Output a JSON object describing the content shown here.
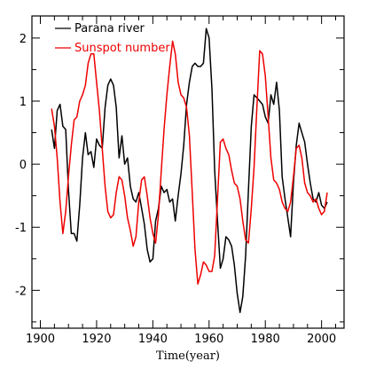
{
  "chart_data": {
    "type": "line",
    "title": "",
    "xlabel": "Time(year)",
    "ylabel": "",
    "xlim": [
      1897,
      2008
    ],
    "ylim": [
      -2.6,
      2.35
    ],
    "xticks": [
      1900,
      1920,
      1940,
      1960,
      1980,
      2000
    ],
    "yticks": [
      -2,
      -1,
      0,
      1,
      2
    ],
    "grid": false,
    "legend_position": "top-left",
    "series": [
      {
        "name": "Parana river",
        "color": "#000000",
        "x": [
          1904,
          1905,
          1906,
          1907,
          1908,
          1909,
          1910,
          1911,
          1912,
          1913,
          1914,
          1915,
          1916,
          1917,
          1918,
          1919,
          1920,
          1921,
          1922,
          1923,
          1924,
          1925,
          1926,
          1927,
          1928,
          1929,
          1930,
          1931,
          1932,
          1933,
          1934,
          1935,
          1936,
          1937,
          1938,
          1939,
          1940,
          1941,
          1942,
          1943,
          1944,
          1945,
          1946,
          1947,
          1948,
          1949,
          1950,
          1951,
          1952,
          1953,
          1954,
          1955,
          1956,
          1957,
          1958,
          1959,
          1960,
          1961,
          1962,
          1963,
          1964,
          1965,
          1966,
          1967,
          1968,
          1969,
          1970,
          1971,
          1972,
          1973,
          1974,
          1975,
          1976,
          1977,
          1978,
          1979,
          1980,
          1981,
          1982,
          1983,
          1984,
          1985,
          1986,
          1987,
          1988,
          1989,
          1990,
          1991,
          1992,
          1993,
          1994,
          1995,
          1996,
          1997,
          1998,
          1999,
          2000,
          2001,
          2002
        ],
        "y": [
          0.55,
          0.25,
          0.85,
          0.95,
          0.6,
          0.55,
          -0.4,
          -1.1,
          -1.1,
          -1.22,
          -0.65,
          0.1,
          0.5,
          0.15,
          0.2,
          -0.05,
          0.4,
          0.3,
          0.25,
          0.9,
          1.25,
          1.35,
          1.25,
          0.9,
          0.1,
          0.45,
          0,
          0.1,
          -0.35,
          -0.55,
          -0.6,
          -0.45,
          -0.7,
          -0.95,
          -1.35,
          -1.55,
          -1.5,
          -0.9,
          -0.7,
          -0.35,
          -0.45,
          -0.4,
          -0.6,
          -0.55,
          -0.9,
          -0.5,
          -0.15,
          0.3,
          0.95,
          1.3,
          1.55,
          1.6,
          1.55,
          1.55,
          1.6,
          2.15,
          2.0,
          1.2,
          -0.1,
          -0.9,
          -1.65,
          -1.5,
          -1.15,
          -1.2,
          -1.3,
          -1.6,
          -2.05,
          -2.35,
          -2.1,
          -1.45,
          -0.4,
          0.6,
          1.1,
          1.05,
          1.0,
          0.95,
          0.75,
          0.65,
          1.1,
          0.95,
          1.3,
          0.85,
          -0.2,
          -0.55,
          -0.85,
          -1.15,
          -0.3,
          0.3,
          0.65,
          0.5,
          0.35,
          0.0,
          -0.3,
          -0.55,
          -0.6,
          -0.45,
          -0.65,
          -0.7,
          -0.6
        ]
      },
      {
        "name": "Sunspot number",
        "color": "#ee0000",
        "x": [
          1904,
          1905,
          1906,
          1907,
          1908,
          1909,
          1910,
          1911,
          1912,
          1913,
          1914,
          1915,
          1916,
          1917,
          1918,
          1919,
          1920,
          1921,
          1922,
          1923,
          1924,
          1925,
          1926,
          1927,
          1928,
          1929,
          1930,
          1931,
          1932,
          1933,
          1934,
          1935,
          1936,
          1937,
          1938,
          1939,
          1940,
          1941,
          1942,
          1943,
          1944,
          1945,
          1946,
          1947,
          1948,
          1949,
          1950,
          1951,
          1952,
          1953,
          1954,
          1955,
          1956,
          1957,
          1958,
          1959,
          1960,
          1961,
          1962,
          1963,
          1964,
          1965,
          1966,
          1967,
          1968,
          1969,
          1970,
          1971,
          1972,
          1973,
          1974,
          1975,
          1976,
          1977,
          1978,
          1979,
          1980,
          1981,
          1982,
          1983,
          1984,
          1985,
          1986,
          1987,
          1988,
          1989,
          1990,
          1991,
          1992,
          1993,
          1994,
          1995,
          1996,
          1997,
          1998,
          1999,
          2000,
          2001,
          2002
        ],
        "y": [
          0.88,
          0.6,
          0.1,
          -0.6,
          -1.1,
          -0.75,
          -0.2,
          0.3,
          0.7,
          0.75,
          1.0,
          1.1,
          1.25,
          1.6,
          1.75,
          1.75,
          1.3,
          0.85,
          0.25,
          -0.35,
          -0.75,
          -0.85,
          -0.8,
          -0.45,
          -0.2,
          -0.25,
          -0.5,
          -0.85,
          -1.05,
          -1.3,
          -1.15,
          -0.6,
          -0.25,
          -0.2,
          -0.5,
          -0.85,
          -1.1,
          -1.25,
          -0.8,
          -0.1,
          0.55,
          1.1,
          1.55,
          1.95,
          1.75,
          1.3,
          1.1,
          1.05,
          0.9,
          0.45,
          -0.45,
          -1.35,
          -1.9,
          -1.75,
          -1.55,
          -1.6,
          -1.7,
          -1.7,
          -1.45,
          -0.55,
          0.35,
          0.4,
          0.25,
          0.15,
          -0.1,
          -0.3,
          -0.35,
          -0.55,
          -0.9,
          -1.2,
          -1.25,
          -0.7,
          -0.05,
          0.9,
          1.8,
          1.75,
          1.4,
          0.75,
          0.1,
          -0.25,
          -0.3,
          -0.4,
          -0.6,
          -0.7,
          -0.75,
          -0.6,
          -0.2,
          0.25,
          0.3,
          0.1,
          -0.3,
          -0.45,
          -0.5,
          -0.6,
          -0.55,
          -0.7,
          -0.8,
          -0.75,
          -0.45
        ]
      }
    ]
  }
}
